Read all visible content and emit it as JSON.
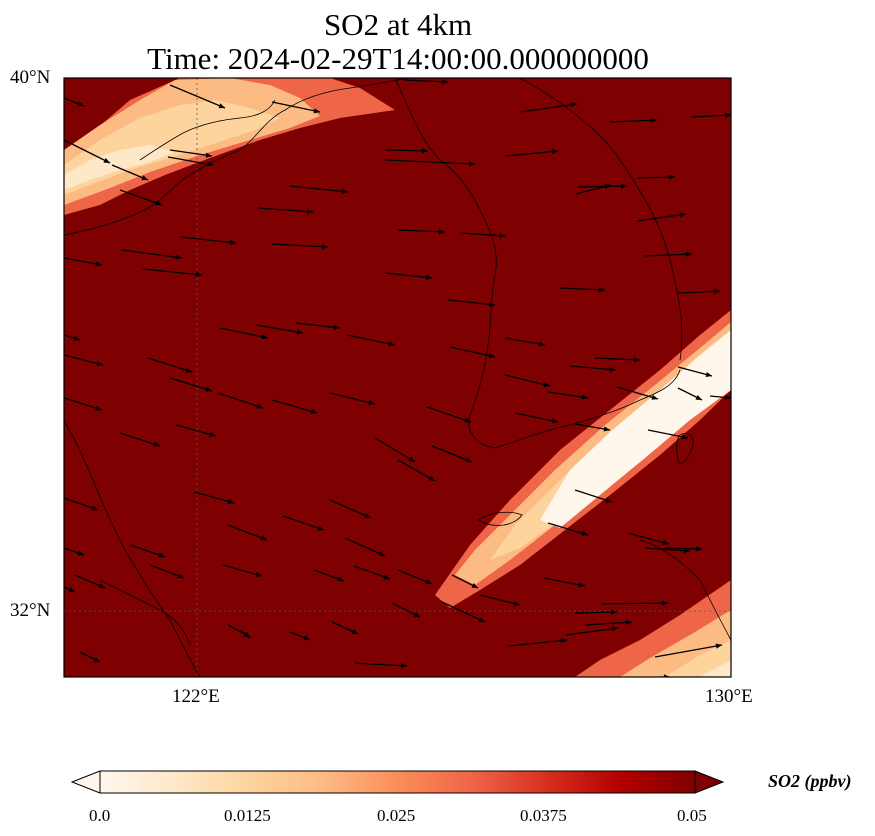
{
  "title": {
    "line1": "SO2 at 4km",
    "line2": "Time: 2024-02-29T14:00:00.000000000"
  },
  "map": {
    "lat_labels": [
      "40°N",
      "32°N"
    ],
    "lon_labels": [
      "122°E",
      "130°E"
    ],
    "extent": {
      "lon_min": 120,
      "lon_max": 130,
      "lat_min": 31,
      "lat_max": 40
    },
    "gridlines": {
      "lons": [
        122
      ],
      "lats": [
        32
      ],
      "style": "dotted"
    },
    "background_color": "#7f0000"
  },
  "colorbar": {
    "label": "SO2 (ppbv)",
    "ticks": [
      "0.0",
      "0.0125",
      "0.025",
      "0.0375",
      "0.05"
    ],
    "range": [
      0,
      0.05
    ],
    "extend": "both",
    "colors": [
      "#fff7ec",
      "#fee8c8",
      "#fdd49e",
      "#fdbb84",
      "#fc8d59",
      "#ef6548",
      "#d7301f",
      "#b30000",
      "#7f0000"
    ]
  }
}
